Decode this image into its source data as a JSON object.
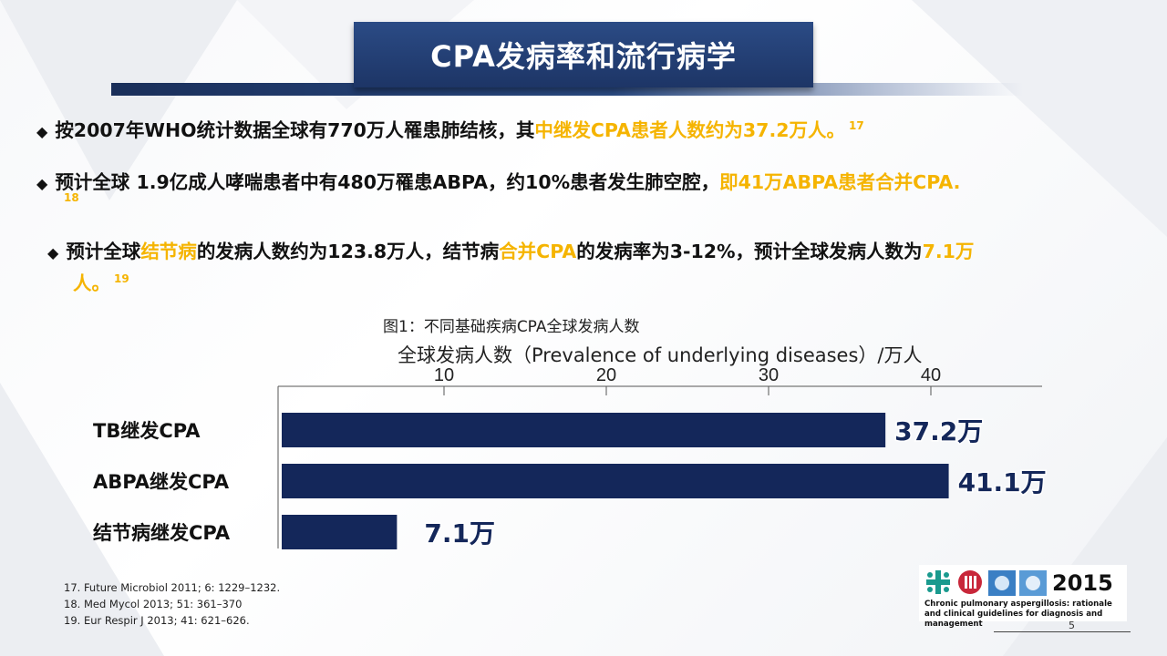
{
  "title": "CPA发病率和流行病学",
  "bullets": [
    {
      "prefix": "◆",
      "text": "按2007年WHO统计数据全球有770万人罹患肺结核，其",
      "highlight": "中继发CPA患者人数约为37.2万人。",
      "ref": "17"
    },
    {
      "prefix": "◆",
      "text": "预计全球 1.9亿成人哮喘患者中有480万罹患ABPA，约10%患者发生肺空腔，",
      "highlight": "即41万ABPA患者合并CPA.",
      "ref": "18"
    },
    {
      "prefix": "◆",
      "p1": "预计全球",
      "h1": "结节病",
      "p2": "的发病人数约为123.8万人，结节病",
      "h2": "合并CPA",
      "p3": "的发病率为3-12%，预计全球发病人数为",
      "h3": "7.1万",
      "line2_highlight": "人。",
      "ref": "19"
    }
  ],
  "chart_data": {
    "type": "bar",
    "orientation": "horizontal",
    "title": "图1：不同基础疾病CPA全球发病人数",
    "xlabel": "全球发病人数（Prevalence of underlying diseases）/万人",
    "xlim": [
      0,
      42
    ],
    "xticks": [
      10,
      20,
      30,
      40
    ],
    "x_axis_position": "top",
    "categories": [
      "TB继发CPA",
      "ABPA继发CPA",
      "结节病继发CPA"
    ],
    "values": [
      37.2,
      41.1,
      7.1
    ],
    "data_labels": [
      "37.2万",
      "41.1万",
      "7.1万"
    ],
    "bar_color": "#14275a"
  },
  "references": [
    "17. Future Microbiol 2011; 6: 1229–1232.",
    "18. Med Mycol 2013; 51: 361–370",
    "19. Eur Respir J 2013; 41: 621–626."
  ],
  "logo": {
    "icons": [
      "ers-cross-icon",
      "escmid-seal-icon",
      "ecmm-logo-icon"
    ],
    "year": "2015",
    "caption": "Chronic pulmonary aspergillosis: rationale and clinical guidelines for diagnosis and management"
  },
  "page_number": "5"
}
